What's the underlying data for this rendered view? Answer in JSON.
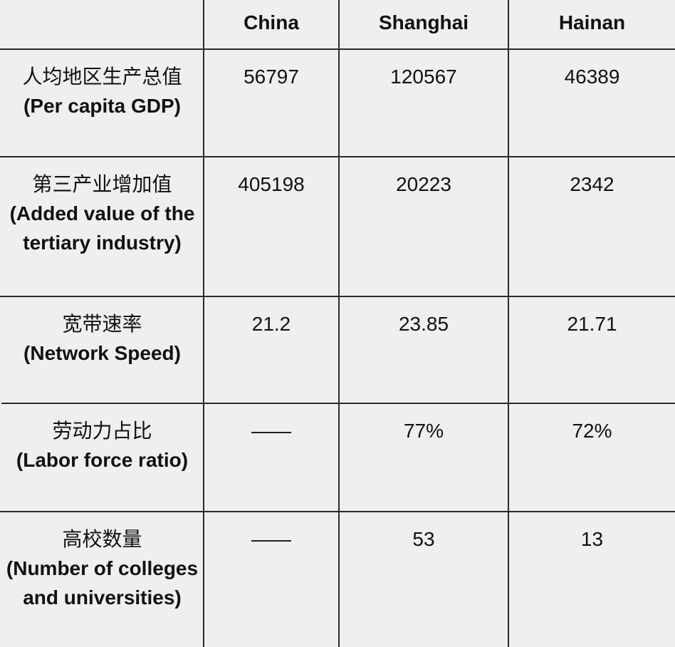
{
  "table": {
    "columns": [
      "",
      "China",
      "Shanghai",
      "Hainan"
    ],
    "rows": [
      {
        "label_zh": "人均地区生产总值",
        "label_en": "(Per capita GDP)",
        "values": [
          "56797",
          "120567",
          "46389"
        ]
      },
      {
        "label_zh": "第三产业增加值",
        "label_en": "(Added value of the tertiary industry)",
        "values": [
          "405198",
          "20223",
          "2342"
        ]
      },
      {
        "label_zh": "宽带速率",
        "label_en": "(Network Speed)",
        "values": [
          "21.2",
          "23.85",
          "21.71"
        ]
      },
      {
        "label_zh": "劳动力占比",
        "label_en": "(Labor force ratio)",
        "values": [
          "——",
          "77%",
          "72%"
        ]
      },
      {
        "label_zh": "高校数量",
        "label_en": "(Number of colleges and universities)",
        "values": [
          "——",
          "53",
          "13"
        ]
      }
    ]
  }
}
